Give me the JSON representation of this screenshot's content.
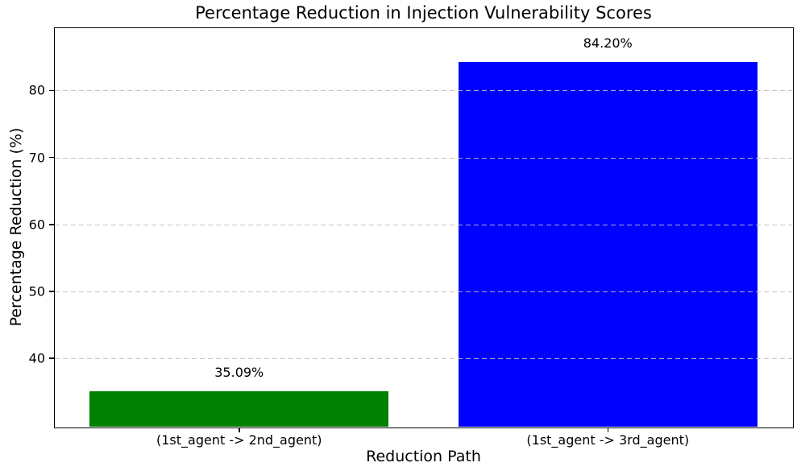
{
  "chart_data": {
    "type": "bar",
    "title": "Percentage Reduction in Injection Vulnerability Scores",
    "xlabel": "Reduction Path",
    "ylabel": "Percentage Reduction (%)",
    "categories": [
      "(1st_agent -> 2nd_agent)",
      "(1st_agent -> 3rd_agent)"
    ],
    "values": [
      35.09,
      84.2
    ],
    "value_labels": [
      "35.09%",
      "84.20%"
    ],
    "bar_colors": [
      "#008000",
      "#0000ff"
    ],
    "ylim": [
      29.8,
      89.3
    ],
    "yticks": [
      40,
      50,
      60,
      70,
      80
    ],
    "ytick_labels": [
      "40",
      "50",
      "60",
      "70",
      "80"
    ],
    "grid": {
      "axis": "y",
      "style": "dashed",
      "color": "#bebebe",
      "on": true
    },
    "legend": "none",
    "background_color": "#ffffff",
    "bar_width_fraction": 0.405
  }
}
